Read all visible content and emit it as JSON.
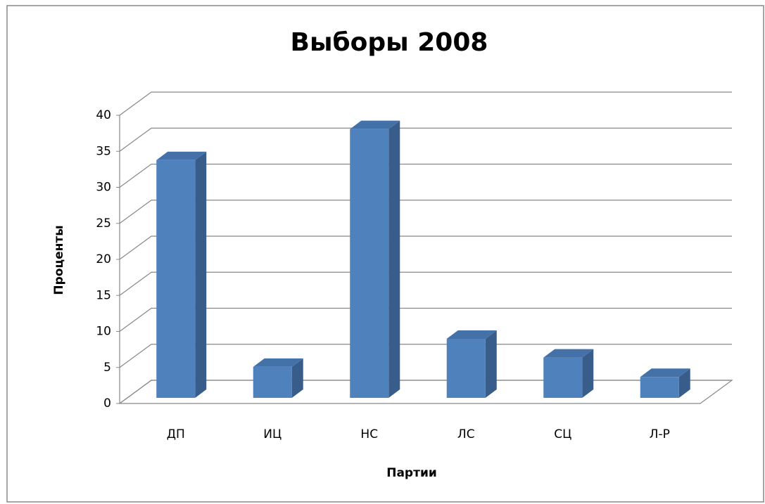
{
  "chart_data": {
    "type": "bar3d",
    "title": "Выборы 2008",
    "categories": [
      "ДП",
      "ИЦ",
      "НС",
      "ЛС",
      "СЦ",
      "Л-Р"
    ],
    "values": [
      33,
      4.3,
      37.3,
      8.2,
      5.6,
      2.9
    ],
    "color": "#4f81bd",
    "xlabel": "Партии",
    "ylabel": "Проценты",
    "ylim": [
      0,
      40
    ],
    "yticks": [
      0,
      5,
      10,
      15,
      20,
      25,
      30,
      35,
      40
    ],
    "grid": true
  }
}
